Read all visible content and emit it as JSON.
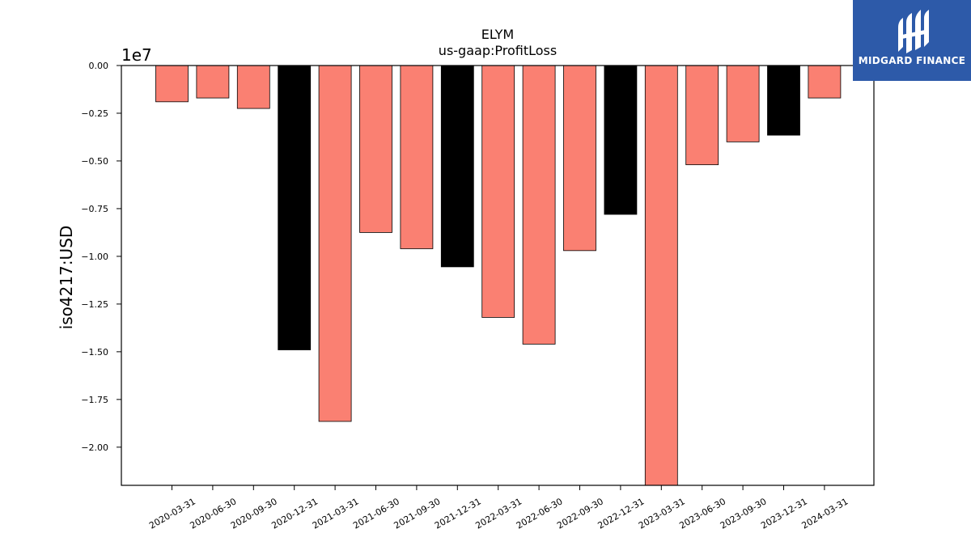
{
  "chart_data": {
    "type": "bar",
    "title": "ELYM",
    "subtitle": "us-gaap:ProfitLoss",
    "ylabel": "iso4217:USD",
    "y_offset_label": "1e7",
    "ylim": [
      -2.2,
      0.0
    ],
    "y_ticks": [
      "0.00",
      "−0.25",
      "−0.50",
      "−0.75",
      "−1.00",
      "−1.25",
      "−1.50",
      "−1.75",
      "−2.00"
    ],
    "y_tick_values": [
      0,
      -0.25,
      -0.5,
      -0.75,
      -1.0,
      -1.25,
      -1.5,
      -1.75,
      -2.0
    ],
    "categories": [
      "2020-03-31",
      "2020-06-30",
      "2020-09-30",
      "2020-12-31",
      "2021-03-31",
      "2021-06-30",
      "2021-09-30",
      "2021-12-31",
      "2022-03-31",
      "2022-06-30",
      "2022-09-30",
      "2022-12-31",
      "2023-03-31",
      "2023-06-30",
      "2023-09-30",
      "2023-12-31",
      "2024-03-31"
    ],
    "values": [
      -0.19,
      -0.17,
      -0.225,
      -1.49,
      -1.865,
      -0.875,
      -0.96,
      -1.055,
      -1.32,
      -1.46,
      -0.97,
      -0.78,
      -2.25,
      -0.52,
      -0.4,
      -0.365,
      -0.17
    ],
    "bar_colors": [
      "#fa8072",
      "#fa8072",
      "#fa8072",
      "#000000",
      "#fa8072",
      "#fa8072",
      "#fa8072",
      "#000000",
      "#fa8072",
      "#fa8072",
      "#fa8072",
      "#000000",
      "#fa8072",
      "#fa8072",
      "#fa8072",
      "#000000",
      "#fa8072"
    ],
    "grid": false
  },
  "logo": {
    "text": "MIDGARD FINANCE",
    "background": "#2d5aa9"
  }
}
